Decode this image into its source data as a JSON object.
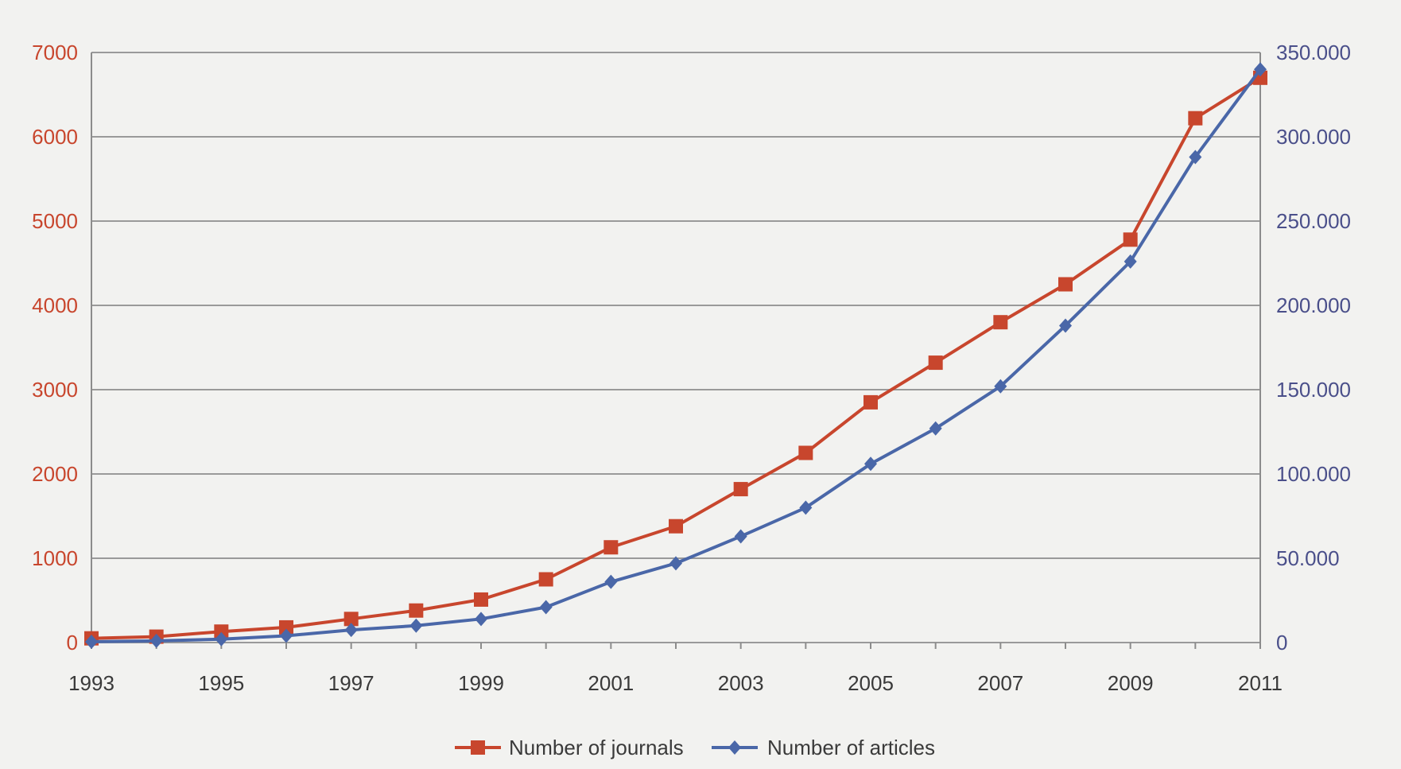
{
  "chart_data": {
    "type": "line",
    "x": [
      1993,
      1994,
      1995,
      1996,
      1997,
      1998,
      1999,
      2000,
      2001,
      2002,
      2003,
      2004,
      2005,
      2006,
      2007,
      2008,
      2009,
      2010,
      2011
    ],
    "x_tick_labels": [
      "1993",
      "1995",
      "1997",
      "1999",
      "2001",
      "2003",
      "2005",
      "2007",
      "2009",
      "2011"
    ],
    "xlim": [
      1993,
      2011
    ],
    "y_left": {
      "label": "",
      "ylim": [
        0,
        7000
      ],
      "tick_labels": [
        "0",
        "1000",
        "2000",
        "3000",
        "4000",
        "5000",
        "6000",
        "7000"
      ],
      "color": "#c8462d"
    },
    "y_right": {
      "label": "",
      "ylim": [
        0,
        350000
      ],
      "tick_labels": [
        "0",
        "50.000",
        "100.000",
        "150.000",
        "200.000",
        "250.000",
        "300.000",
        "350.000"
      ],
      "color": "#4a4f8a"
    },
    "series": [
      {
        "name": "Number of journals",
        "axis": "left",
        "color": "#c8462d",
        "marker": "square",
        "values": [
          50,
          70,
          130,
          180,
          280,
          380,
          510,
          750,
          1130,
          1380,
          1820,
          2250,
          2850,
          3320,
          3800,
          4250,
          4780,
          6220,
          6700
        ]
      },
      {
        "name": "Number of articles",
        "axis": "right",
        "color": "#4a67a8",
        "marker": "diamond",
        "values": [
          500,
          1000,
          2000,
          4000,
          7500,
          10000,
          14000,
          21000,
          36000,
          47000,
          63000,
          80000,
          106000,
          127000,
          152000,
          188000,
          226000,
          288000,
          340000
        ]
      }
    ],
    "title": "",
    "xlabel": "",
    "grid": true,
    "legend_position": "bottom-center"
  }
}
